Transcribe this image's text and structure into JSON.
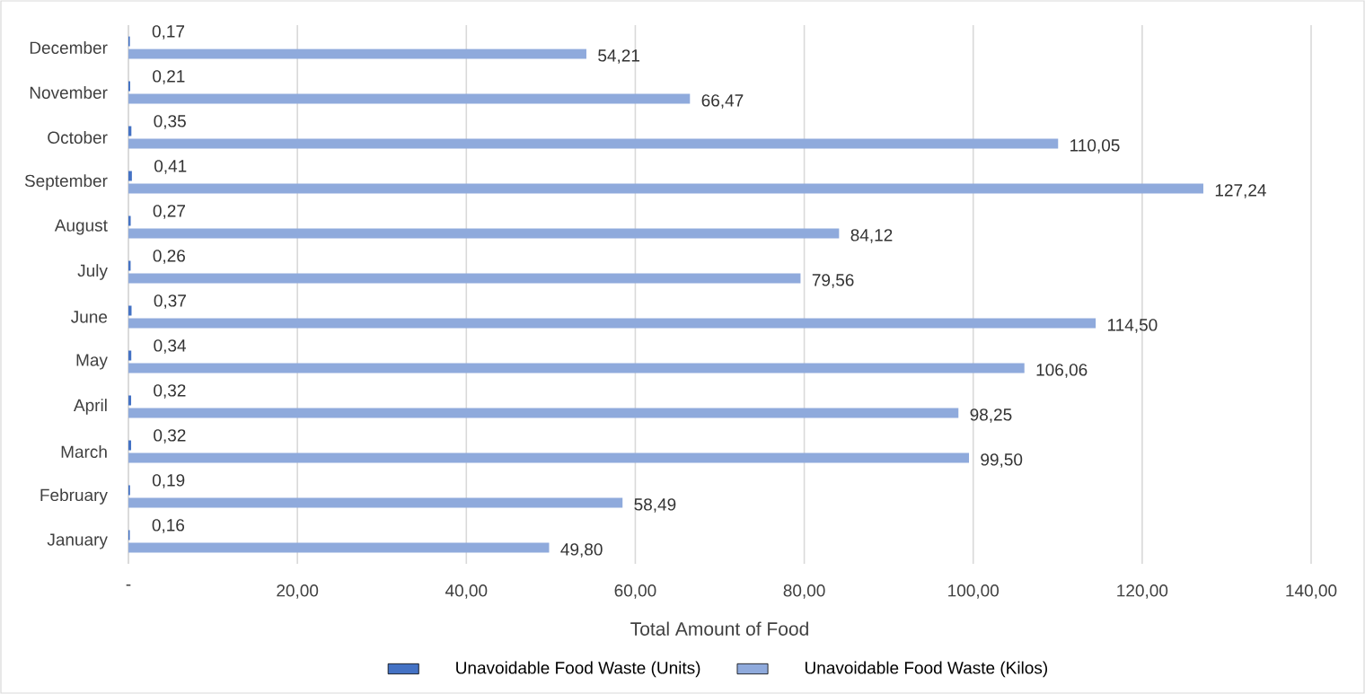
{
  "chart_data": {
    "type": "bar",
    "orientation": "horizontal",
    "xlabel": "Total Amount of Food",
    "categories": [
      "December",
      "November",
      "October",
      "September",
      "August",
      "July",
      "June",
      "May",
      "April",
      "March",
      "February",
      "January"
    ],
    "series": [
      {
        "name": "Unavoidable Food Waste (Units)",
        "color": "#4472c4",
        "values": [
          0.17,
          0.21,
          0.35,
          0.41,
          0.27,
          0.26,
          0.37,
          0.34,
          0.32,
          0.32,
          0.19,
          0.16
        ],
        "value_labels": [
          "0,17",
          "0,21",
          "0,35",
          "0,41",
          "0,27",
          "0,26",
          "0,37",
          "0,34",
          "0,32",
          "0,32",
          "0,19",
          "0,16"
        ]
      },
      {
        "name": "Unavoidable Food Waste (Kilos)",
        "color": "#8faadc",
        "values": [
          54.21,
          66.47,
          110.05,
          127.24,
          84.12,
          79.56,
          114.5,
          106.06,
          98.25,
          99.5,
          58.49,
          49.8
        ],
        "value_labels": [
          "54,21",
          "66,47",
          "110,05",
          "127,24",
          "84,12",
          "79,56",
          "114,50",
          "106,06",
          "98,25",
          "99,50",
          "58,49",
          "49,80"
        ]
      }
    ],
    "xlim": [
      0,
      140
    ],
    "xticks": [
      {
        "value": 0,
        "label": "-"
      },
      {
        "value": 20,
        "label": "20,00"
      },
      {
        "value": 40,
        "label": "40,00"
      },
      {
        "value": 60,
        "label": "60,00"
      },
      {
        "value": 80,
        "label": "80,00"
      },
      {
        "value": 100,
        "label": "100,00"
      },
      {
        "value": 120,
        "label": "120,00"
      },
      {
        "value": 140,
        "label": "140,00"
      }
    ],
    "grid": "x",
    "legend": "bottom"
  }
}
